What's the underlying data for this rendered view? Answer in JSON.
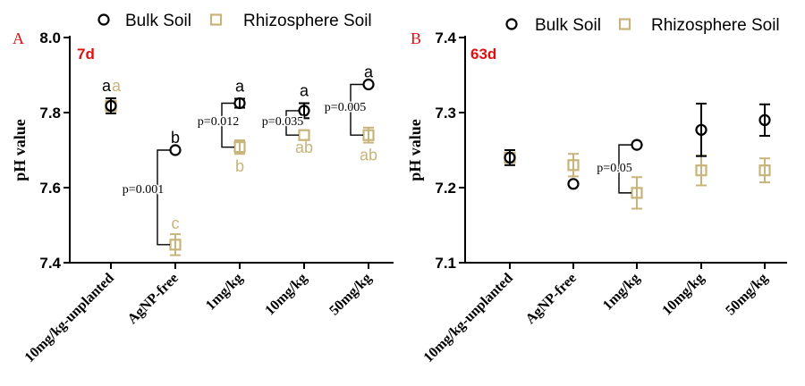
{
  "legend": {
    "bulk_label": "Bulk Soil",
    "rhizo_label": "Rhizosphere Soil"
  },
  "colors": {
    "bulk": "#000000",
    "rhizo": "#c8b47a",
    "panel_tag": "#e01010"
  },
  "chart_data": [
    {
      "type": "scatter",
      "panel_letter": "A",
      "panel_tag": "7d",
      "ylabel": "pH value",
      "ylim": [
        7.4,
        8.0
      ],
      "yticks": [
        "7.4",
        "7.6",
        "7.8",
        "8.0"
      ],
      "categories": [
        "10mg/kg-unplanted",
        "AgNP-free",
        "1mg/kg",
        "10mg/kg",
        "50mg/kg"
      ],
      "series": [
        {
          "name": "Bulk Soil",
          "values": [
            7.818,
            7.7,
            7.825,
            7.805,
            7.875
          ],
          "errors": [
            0.02,
            0.0,
            0.012,
            0.02,
            0.0
          ]
        },
        {
          "name": "Rhizosphere Soil",
          "values": [
            7.818,
            7.448,
            7.708,
            7.74,
            7.74
          ],
          "errors": [
            0.02,
            0.028,
            0.018,
            0.0,
            0.02
          ]
        }
      ],
      "letters_bulk": [
        "aa",
        "b",
        "a",
        "a",
        "a"
      ],
      "letters_rhizo": [
        "",
        "c",
        "b",
        "ab",
        "ab"
      ],
      "pvalues": [
        "",
        "p=0.001",
        "p=0.012",
        "p=0.035",
        "p=0.005"
      ]
    },
    {
      "type": "scatter",
      "panel_letter": "B",
      "panel_tag": "63d",
      "ylabel": "pH value",
      "ylim": [
        7.1,
        7.4
      ],
      "yticks": [
        "7.1",
        "7.2",
        "7.3",
        "7.4"
      ],
      "categories": [
        "10mg/kg-unplanted",
        "AgNP-free",
        "1mg/kg",
        "10mg/kg",
        "50mg/kg"
      ],
      "series": [
        {
          "name": "Bulk Soil",
          "values": [
            7.24,
            7.205,
            7.257,
            7.277,
            7.29
          ],
          "errors": [
            0.01,
            0.0,
            0.0,
            0.035,
            0.021
          ]
        },
        {
          "name": "Rhizosphere Soil",
          "values": [
            7.24,
            7.23,
            7.193,
            7.223,
            7.223
          ],
          "errors": [
            0.0,
            0.015,
            0.021,
            0.02,
            0.016
          ]
        }
      ],
      "pvalues": [
        "",
        "",
        "p=0.05",
        "",
        ""
      ]
    }
  ]
}
